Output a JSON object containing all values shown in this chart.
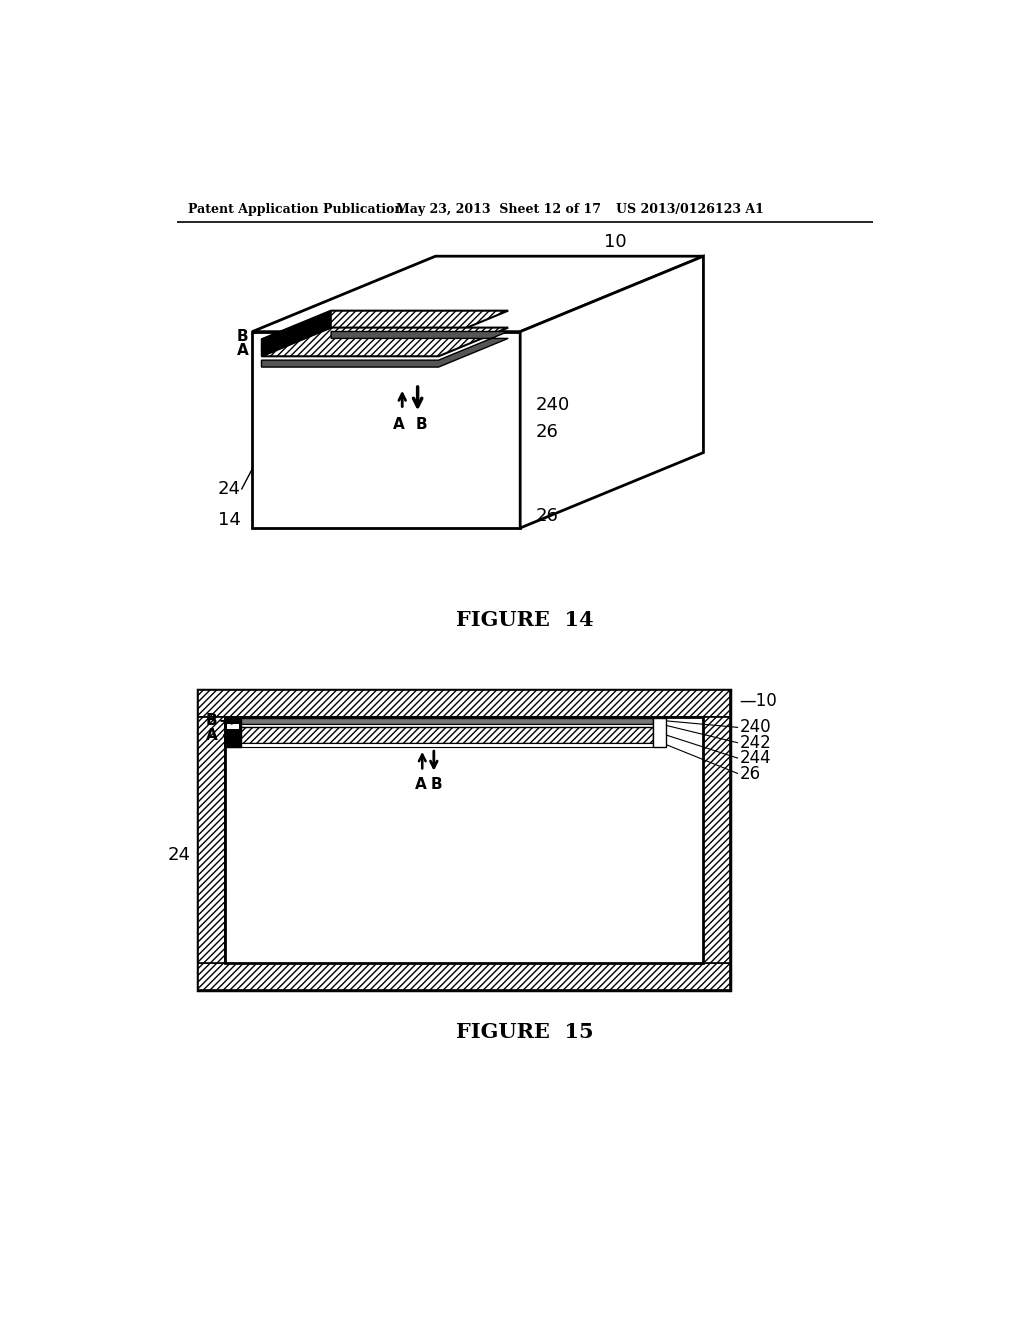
{
  "header_left": "Patent Application Publication",
  "header_mid": "May 23, 2013  Sheet 12 of 17",
  "header_right": "US 2013/0126123 A1",
  "fig14_caption": "FIGURE  14",
  "fig15_caption": "FIGURE  15",
  "bg_color": "#ffffff"
}
